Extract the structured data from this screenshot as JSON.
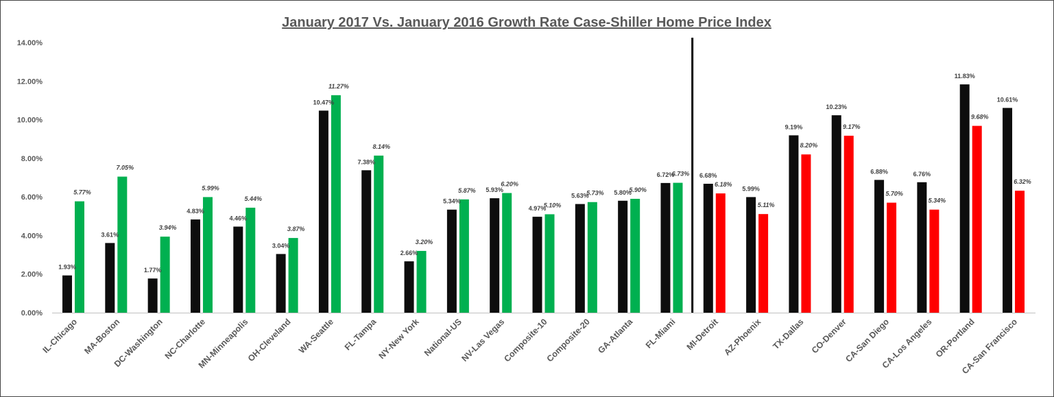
{
  "chart_data": {
    "type": "bar",
    "title": "January 2017 Vs. January 2016 Growth Rate Case-Shiller Home Price Index",
    "xlabel": "",
    "ylabel": "",
    "ylim": [
      0,
      14
    ],
    "yticks": [
      "0.00%",
      "2.00%",
      "4.00%",
      "6.00%",
      "8.00%",
      "10.00%",
      "12.00%",
      "14.00%"
    ],
    "grid": false,
    "categories": [
      "IL-Chicago",
      "MA-Boston",
      "DC-Washington",
      "NC-Charlotte",
      "MN-Minneapolis",
      "OH-Cleveland",
      "WA-Seattle",
      "FL-Tampa",
      "NY-New York",
      "National-US",
      "NV-Las Vegas",
      "Composite-10",
      "Composite-20",
      "GA-Atlanta",
      "FL-Miami",
      "MI-Detroit",
      "AZ-Phoenix",
      "TX-Dallas",
      "CO-Denver",
      "CA-San Diego",
      "CA-Los Angeles",
      "OR-Portland",
      "CA-San Francisco"
    ],
    "series": [
      {
        "color": "#0d0d0d",
        "values": [
          1.93,
          3.61,
          1.77,
          4.83,
          4.46,
          3.04,
          10.47,
          7.38,
          2.66,
          5.34,
          5.93,
          4.97,
          5.63,
          5.8,
          6.72,
          6.68,
          5.99,
          9.19,
          10.23,
          6.88,
          6.76,
          11.83,
          10.61
        ],
        "labels": [
          "1.93%",
          "3.61%",
          "1.77%",
          "4.83%",
          "4.46%",
          "3.04%",
          "10.47%",
          "7.38%",
          "2.66%",
          "5.34%",
          "5.93%",
          "4.97%",
          "5.63%",
          "5.80%",
          "6.72%",
          "6.68%",
          "5.99%",
          "9.19%",
          "10.23%",
          "6.88%",
          "6.76%",
          "11.83%",
          "10.61%"
        ]
      },
      {
        "colors_by_group": {
          "increase": "#00b050",
          "decrease": "#ff0000"
        },
        "increase_count": 15,
        "values": [
          5.77,
          7.05,
          3.94,
          5.99,
          5.44,
          3.87,
          11.27,
          8.14,
          3.2,
          5.87,
          6.2,
          5.1,
          5.73,
          5.9,
          6.73,
          6.18,
          5.11,
          8.2,
          9.17,
          5.7,
          5.34,
          9.68,
          6.32
        ],
        "labels": [
          "5.77%",
          "7.05%",
          "3.94%",
          "5.99%",
          "5.44%",
          "3.87%",
          "11.27%",
          "8.14%",
          "3.20%",
          "5.87%",
          "6.20%",
          "5.10%",
          "5.73%",
          "5.90%",
          "6.73%",
          "6.18%",
          "5.11%",
          "8.20%",
          "9.17%",
          "5.70%",
          "5.34%",
          "9.68%",
          "6.32%"
        ]
      }
    ],
    "divider_after_category": "FL-Miami"
  }
}
